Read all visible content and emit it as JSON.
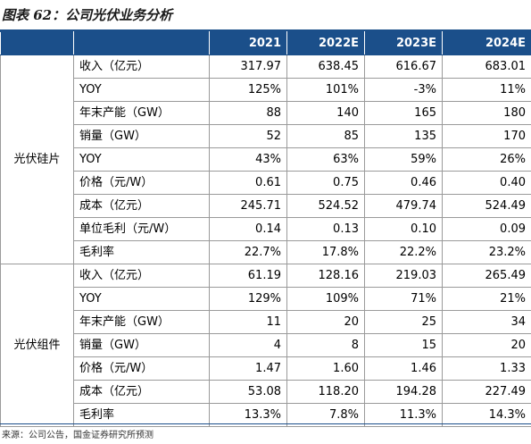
{
  "title": "图表 62：公司光伏业务分析",
  "header": {
    "years": [
      "2021",
      "2022E",
      "2023E",
      "2024E"
    ]
  },
  "segments": [
    {
      "name": "光伏硅片",
      "rows": [
        {
          "metric": "收入（亿元）",
          "values": [
            "317.97",
            "638.45",
            "616.67",
            "683.01"
          ]
        },
        {
          "metric": "YOY",
          "values": [
            "125%",
            "101%",
            "-3%",
            "11%"
          ]
        },
        {
          "metric": "年末产能（GW）",
          "values": [
            "88",
            "140",
            "165",
            "180"
          ]
        },
        {
          "metric": "销量（GW）",
          "values": [
            "52",
            "85",
            "135",
            "170"
          ]
        },
        {
          "metric": "YOY",
          "values": [
            "43%",
            "63%",
            "59%",
            "26%"
          ]
        },
        {
          "metric": "价格（元/W）",
          "values": [
            "0.61",
            "0.75",
            "0.46",
            "0.40"
          ]
        },
        {
          "metric": "成本（亿元）",
          "values": [
            "245.71",
            "524.52",
            "479.74",
            "524.49"
          ]
        },
        {
          "metric": "单位毛利（元/W）",
          "values": [
            "0.14",
            "0.13",
            "0.10",
            "0.09"
          ]
        },
        {
          "metric": "毛利率",
          "values": [
            "22.7%",
            "17.8%",
            "22.2%",
            "23.2%"
          ]
        }
      ]
    },
    {
      "name": "光伏组件",
      "rows": [
        {
          "metric": "收入（亿元）",
          "values": [
            "61.19",
            "128.16",
            "219.03",
            "265.49"
          ]
        },
        {
          "metric": "YOY",
          "values": [
            "129%",
            "109%",
            "71%",
            "21%"
          ]
        },
        {
          "metric": "年末产能（GW）",
          "values": [
            "11",
            "20",
            "25",
            "34"
          ]
        },
        {
          "metric": "销量（GW）",
          "values": [
            "4",
            "8",
            "15",
            "20"
          ]
        },
        {
          "metric": "价格（元/W）",
          "values": [
            "1.47",
            "1.60",
            "1.46",
            "1.33"
          ]
        },
        {
          "metric": "成本（亿元）",
          "values": [
            "53.08",
            "118.20",
            "194.28",
            "227.49"
          ]
        },
        {
          "metric": "毛利率",
          "values": [
            "13.3%",
            "7.8%",
            "11.3%",
            "14.3%"
          ]
        }
      ]
    }
  ],
  "footer": "来源：公司公告，国金证券研究所预测",
  "colors": {
    "header_bg": "#1b4f8a",
    "border": "#9a9a9a"
  }
}
